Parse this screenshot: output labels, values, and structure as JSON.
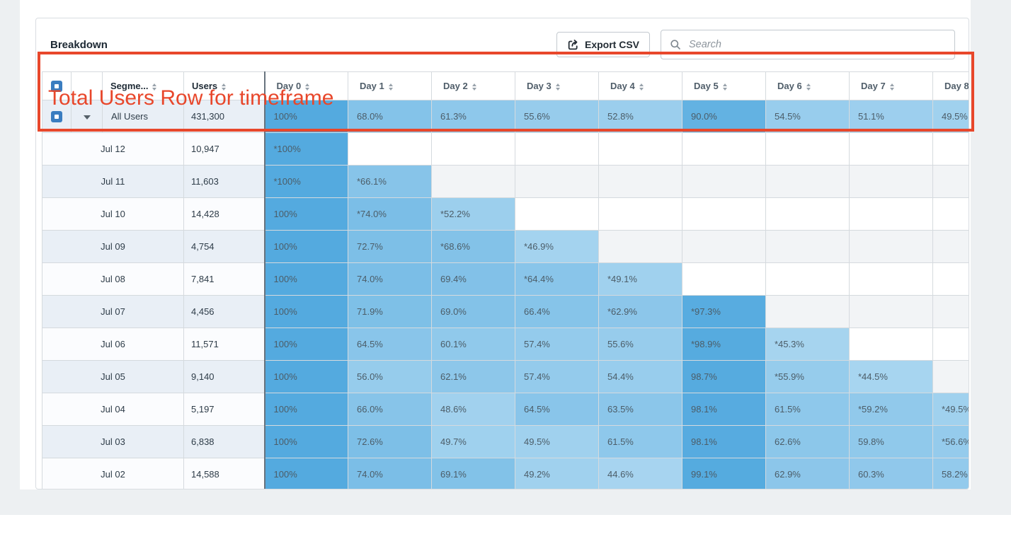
{
  "panel": {
    "title": "Breakdown",
    "export_label": "Export CSV",
    "search_placeholder": "Search"
  },
  "annotation": {
    "label": "Total Users Row for timeframe",
    "color": "#e8472b"
  },
  "table": {
    "segment_col": "Segme...",
    "users_col": "Users",
    "day_cols": [
      "Day 0",
      "Day 1",
      "Day 2",
      "Day 3",
      "Day 4",
      "Day 5",
      "Day 6",
      "Day 7",
      "Day 8"
    ],
    "total_row": {
      "segment": "All Users",
      "users": "431,300",
      "days": [
        "100%",
        "68.0%",
        "61.3%",
        "55.6%",
        "52.8%",
        "90.0%",
        "54.5%",
        "51.1%",
        "49.5%"
      ]
    },
    "rows": [
      {
        "date": "Jul 12",
        "users": "10,947",
        "days": [
          "*100%",
          "",
          "",
          "",
          "",
          "",
          "",
          "",
          ""
        ]
      },
      {
        "date": "Jul 11",
        "users": "11,603",
        "days": [
          "*100%",
          "*66.1%",
          "",
          "",
          "",
          "",
          "",
          "",
          ""
        ]
      },
      {
        "date": "Jul 10",
        "users": "14,428",
        "days": [
          "100%",
          "*74.0%",
          "*52.2%",
          "",
          "",
          "",
          "",
          "",
          ""
        ]
      },
      {
        "date": "Jul 09",
        "users": "4,754",
        "days": [
          "100%",
          "72.7%",
          "*68.6%",
          "*46.9%",
          "",
          "",
          "",
          "",
          ""
        ]
      },
      {
        "date": "Jul 08",
        "users": "7,841",
        "days": [
          "100%",
          "74.0%",
          "69.4%",
          "*64.4%",
          "*49.1%",
          "",
          "",
          "",
          ""
        ]
      },
      {
        "date": "Jul 07",
        "users": "4,456",
        "days": [
          "100%",
          "71.9%",
          "69.0%",
          "66.4%",
          "*62.9%",
          "*97.3%",
          "",
          "",
          ""
        ]
      },
      {
        "date": "Jul 06",
        "users": "11,571",
        "days": [
          "100%",
          "64.5%",
          "60.1%",
          "57.4%",
          "55.6%",
          "*98.9%",
          "*45.3%",
          "",
          ""
        ]
      },
      {
        "date": "Jul 05",
        "users": "9,140",
        "days": [
          "100%",
          "56.0%",
          "62.1%",
          "57.4%",
          "54.4%",
          "98.7%",
          "*55.9%",
          "*44.5%",
          ""
        ]
      },
      {
        "date": "Jul 04",
        "users": "5,197",
        "days": [
          "100%",
          "66.0%",
          "48.6%",
          "64.5%",
          "63.5%",
          "98.1%",
          "61.5%",
          "*59.2%",
          "*49.5%"
        ]
      },
      {
        "date": "Jul 03",
        "users": "6,838",
        "days": [
          "100%",
          "72.6%",
          "49.7%",
          "49.5%",
          "61.5%",
          "98.1%",
          "62.6%",
          "59.8%",
          "*56.6%"
        ]
      },
      {
        "date": "Jul 02",
        "users": "14,588",
        "days": [
          "100%",
          "74.0%",
          "69.1%",
          "49.2%",
          "44.6%",
          "99.1%",
          "62.9%",
          "60.3%",
          "58.2%"
        ]
      }
    ],
    "heat_scale": {
      "low_color": "#aed8f1",
      "high_color": "#54aadf",
      "low_value": 40,
      "high_value": 100
    },
    "checkbox_color": "#3a7dc0"
  }
}
